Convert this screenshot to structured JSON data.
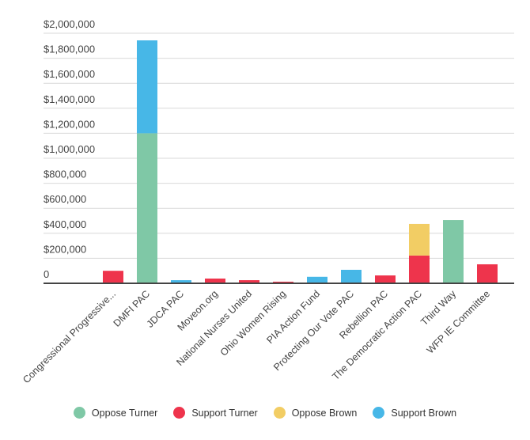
{
  "chart_data": {
    "type": "bar",
    "stacked": true,
    "categories": [
      "Congressional Progressive...",
      "DMFI PAC",
      "JDCA PAC",
      "Moveon.org",
      "National Nurses United",
      "Ohio Women Rising",
      "PIA Action Fund",
      "Protecting Our Vote PAC",
      "Rebellion PAC",
      "The Democratic Action PAC",
      "Third Way",
      "WFP IE Committee"
    ],
    "series": [
      {
        "name": "Oppose Turner",
        "color": "#7fc8a6",
        "values": [
          0,
          1200000,
          0,
          0,
          0,
          0,
          0,
          0,
          0,
          0,
          506000,
          0
        ]
      },
      {
        "name": "Support Turner",
        "color": "#ee344c",
        "values": [
          100000,
          0,
          0,
          38000,
          25000,
          13000,
          0,
          0,
          63000,
          222000,
          0,
          152000
        ]
      },
      {
        "name": "Oppose Brown",
        "color": "#f2cd64",
        "values": [
          0,
          0,
          0,
          0,
          0,
          0,
          0,
          0,
          0,
          253000,
          0,
          0
        ]
      },
      {
        "name": "Support Brown",
        "color": "#47b7e7",
        "values": [
          0,
          743000,
          25000,
          0,
          0,
          0,
          52000,
          108000,
          0,
          0,
          0,
          0
        ]
      }
    ],
    "yticks": [
      "0",
      "$200,000",
      "$400,000",
      "$600,000",
      "$800,000",
      "$1,000,000",
      "$1,200,000",
      "$1,400,000",
      "$1,600,000",
      "$1,800,000",
      "$2,000,000"
    ],
    "ylim": [
      0,
      2000000
    ],
    "grid": true,
    "legend": "bottom"
  }
}
